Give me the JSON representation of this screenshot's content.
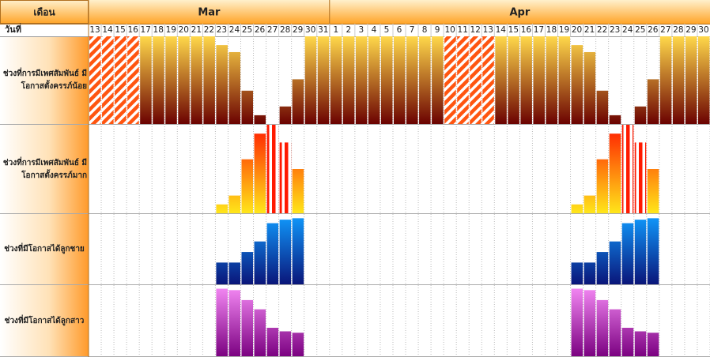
{
  "chart_data": {
    "type": "calendar-bar",
    "corner_label": "เดือน",
    "day_label": "วันที่",
    "months": [
      {
        "name": "Mar",
        "days": [
          13,
          14,
          15,
          16,
          17,
          18,
          19,
          20,
          21,
          22,
          23,
          24,
          25,
          26,
          27,
          28,
          29,
          30,
          31
        ]
      },
      {
        "name": "Apr",
        "days": [
          1,
          2,
          3,
          4,
          5,
          6,
          7,
          8,
          9,
          10,
          11,
          12,
          13,
          14,
          15,
          16,
          17,
          18,
          19,
          20,
          21,
          22,
          23,
          24,
          25,
          26,
          27,
          28,
          29,
          30
        ]
      }
    ],
    "ylim": [
      0,
      100
    ],
    "series": [
      {
        "name": "ช่วงที่การมีเพศสัมพันธ์ มีโอกาสตั้งครรภ์น้อย",
        "colors": [
          "#ffd84a",
          "#6a0000"
        ],
        "hatch": "diagonal",
        "hatch_color": "#ff5510",
        "values": [
          100,
          100,
          100,
          100,
          100,
          100,
          100,
          100,
          100,
          100,
          90,
          82,
          38,
          10,
          0,
          20,
          51,
          100,
          100,
          100,
          100,
          100,
          100,
          100,
          100,
          100,
          100,
          100,
          100,
          100,
          100,
          100,
          100,
          100,
          100,
          100,
          100,
          100,
          90,
          82,
          38,
          10,
          0,
          20,
          51,
          100,
          100,
          100,
          100
        ],
        "hatched": [
          true,
          true,
          true,
          true,
          false,
          false,
          false,
          false,
          false,
          false,
          false,
          false,
          false,
          false,
          false,
          false,
          false,
          false,
          false,
          false,
          false,
          false,
          false,
          false,
          false,
          false,
          false,
          false,
          true,
          true,
          true,
          true,
          false,
          false,
          false,
          false,
          false,
          false,
          false,
          false,
          false,
          false,
          false,
          false,
          false,
          false,
          false,
          false,
          false
        ]
      },
      {
        "name": "ช่วงที่การมีเพศสัมพันธ์ มีโอกาสตั้งครรภ์มาก",
        "colors": [
          "#ff1a00",
          "#ffe81a"
        ],
        "hatch": "vertical",
        "hatch_color": "#ff1a00",
        "values": [
          null,
          null,
          null,
          null,
          null,
          null,
          null,
          null,
          null,
          null,
          10,
          20,
          61,
          90,
          100,
          80,
          50,
          null,
          null,
          null,
          null,
          null,
          null,
          null,
          null,
          null,
          null,
          null,
          null,
          null,
          null,
          null,
          null,
          null,
          null,
          null,
          null,
          null,
          10,
          20,
          61,
          90,
          100,
          80,
          50,
          null,
          null,
          null,
          null
        ],
        "hatched": [
          false,
          false,
          false,
          false,
          false,
          false,
          false,
          false,
          false,
          false,
          false,
          false,
          false,
          false,
          true,
          true,
          false,
          false,
          false,
          false,
          false,
          false,
          false,
          false,
          false,
          false,
          false,
          false,
          false,
          false,
          false,
          false,
          false,
          false,
          false,
          false,
          false,
          false,
          false,
          false,
          false,
          false,
          true,
          true,
          false,
          false,
          false,
          false,
          false
        ]
      },
      {
        "name": "ช่วงที่มีโอกาสได้ลูกชาย",
        "colors": [
          "#109cff",
          "#0a1478"
        ],
        "values": [
          null,
          null,
          null,
          null,
          null,
          null,
          null,
          null,
          null,
          null,
          31,
          31,
          46,
          61,
          87,
          92,
          94,
          null,
          null,
          null,
          null,
          null,
          null,
          null,
          null,
          null,
          null,
          null,
          null,
          null,
          null,
          null,
          null,
          null,
          null,
          null,
          null,
          null,
          31,
          31,
          46,
          61,
          87,
          92,
          94,
          null,
          null,
          null,
          null
        ]
      },
      {
        "name": "ช่วงที่มีโอกาสได้ลูกสาว",
        "colors": [
          "#f78cf7",
          "#7a0080"
        ],
        "values": [
          null,
          null,
          null,
          null,
          null,
          null,
          null,
          null,
          null,
          null,
          95,
          93,
          79,
          66,
          40,
          35,
          33,
          null,
          null,
          null,
          null,
          null,
          null,
          null,
          null,
          null,
          null,
          null,
          null,
          null,
          null,
          null,
          null,
          null,
          null,
          null,
          null,
          null,
          95,
          93,
          79,
          66,
          40,
          35,
          33,
          null,
          null,
          null,
          null
        ]
      }
    ]
  }
}
